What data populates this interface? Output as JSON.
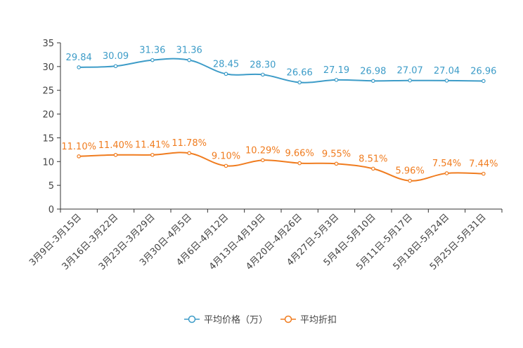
{
  "chart_data": {
    "type": "line",
    "title": "",
    "xlabel": "",
    "ylabel": "",
    "ylim": [
      0,
      35
    ],
    "yticks": [
      0,
      5,
      10,
      15,
      20,
      25,
      30,
      35
    ],
    "grid": false,
    "legend_position": "bottom-center",
    "categories": [
      "3月9日-3月15日",
      "3月16日-3月22日",
      "3月23日-3月29日",
      "3月30日-4月5日",
      "4月6日-4月12日",
      "4月13日-4月19日",
      "4月20日-4月26日",
      "4月27日-5月3日",
      "5月4日-5月10日",
      "5月11日-5月17日",
      "5月18日-5月24日",
      "5月25日-5月31日"
    ],
    "series": [
      {
        "name": "平均价格（万）",
        "color": "#3d9cc8",
        "values": [
          29.84,
          30.09,
          31.36,
          31.36,
          28.45,
          28.3,
          26.66,
          27.19,
          26.98,
          27.07,
          27.04,
          26.96
        ],
        "labels": [
          "29.84",
          "30.09",
          "31.36",
          "31.36",
          "28.45",
          "28.30",
          "26.66",
          "27.19",
          "26.98",
          "27.07",
          "27.04",
          "26.96"
        ]
      },
      {
        "name": "平均折扣",
        "color": "#f07c1f",
        "values": [
          11.1,
          11.4,
          11.41,
          11.78,
          9.1,
          10.29,
          9.66,
          9.55,
          8.51,
          5.96,
          7.54,
          7.44
        ],
        "labels": [
          "11.10%",
          "11.40%",
          "11.41%",
          "11.78%",
          "9.10%",
          "10.29%",
          "9.66%",
          "9.55%",
          "8.51%",
          "5.96%",
          "7.54%",
          "7.44%"
        ]
      }
    ]
  }
}
